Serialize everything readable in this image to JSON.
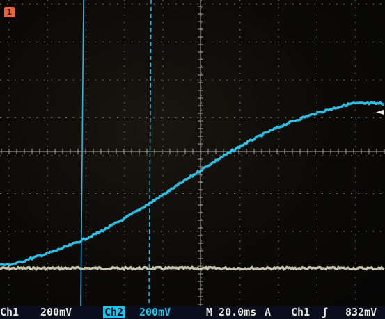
{
  "ch1": {
    "marker_glyph": "1",
    "label": "Ch1",
    "scale": "200mV",
    "trace_color": "#e8e6c8"
  },
  "ch2": {
    "label": "Ch2",
    "scale": "200mV",
    "trace_color": "#2fc8ee"
  },
  "timebase": "M 20.0ms",
  "trigger": {
    "mode": "A",
    "source": "Ch1",
    "slope_glyph": "ʃ",
    "level": "832mV",
    "marker_glyph": "◄"
  },
  "graticule": {
    "divisions_x": 10,
    "divisions_y": 8,
    "color": "#b9b9b9"
  },
  "cursor_color": "#2fb0e0",
  "status_bar_bg": "#0a0e1c"
}
